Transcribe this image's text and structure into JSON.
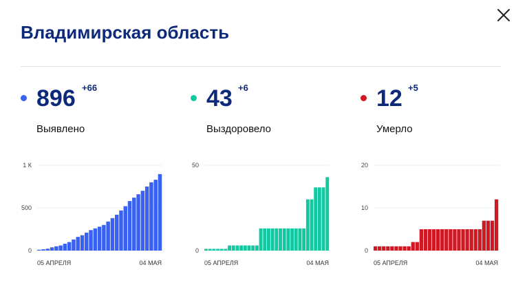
{
  "header": {
    "title": "Владимирская область"
  },
  "stats": [
    {
      "value": "896",
      "delta": "+66",
      "label": "Выявлено",
      "color": "#3a62f2"
    },
    {
      "value": "43",
      "delta": "+6",
      "label": "Выздоровело",
      "color": "#12c8a0"
    },
    {
      "value": "12",
      "delta": "+5",
      "label": "Умерло",
      "color": "#d01822"
    }
  ],
  "chart_data": [
    {
      "type": "bar",
      "color": "#3a62f2",
      "ylim": [
        0,
        1000
      ],
      "y_ticks": [
        {
          "value": 0,
          "label": "0"
        },
        {
          "value": 500,
          "label": "500"
        },
        {
          "value": 1000,
          "label": "1 К"
        }
      ],
      "x_labels": [
        "05 АПРЕЛЯ",
        "04 МАЯ"
      ],
      "values": [
        10,
        15,
        22,
        38,
        50,
        60,
        80,
        100,
        130,
        160,
        180,
        210,
        240,
        260,
        280,
        300,
        340,
        380,
        420,
        470,
        520,
        580,
        620,
        660,
        700,
        750,
        800,
        830,
        896
      ]
    },
    {
      "type": "bar",
      "color": "#12c8a0",
      "ylim": [
        0,
        50
      ],
      "y_ticks": [
        {
          "value": 0,
          "label": "0"
        },
        {
          "value": 50,
          "label": "50"
        }
      ],
      "x_labels": [
        "05 АПРЕЛЯ",
        "04 МАЯ"
      ],
      "values": [
        1,
        1,
        1,
        1,
        1,
        1,
        3,
        3,
        3,
        3,
        3,
        3,
        3,
        3,
        13,
        13,
        13,
        13,
        13,
        13,
        13,
        13,
        13,
        13,
        13,
        13,
        30,
        30,
        37,
        37,
        37,
        43
      ]
    },
    {
      "type": "bar",
      "color": "#d01822",
      "ylim": [
        0,
        20
      ],
      "y_ticks": [
        {
          "value": 0,
          "label": "0"
        },
        {
          "value": 10,
          "label": "10"
        },
        {
          "value": 20,
          "label": "20"
        }
      ],
      "x_labels": [
        "05 АПРЕЛЯ",
        "04 МАЯ"
      ],
      "values": [
        1,
        1,
        1,
        1,
        1,
        1,
        1,
        1,
        1,
        2,
        2,
        5,
        5,
        5,
        5,
        5,
        5,
        5,
        5,
        5,
        5,
        5,
        5,
        5,
        5,
        5,
        7,
        7,
        7,
        12
      ]
    }
  ]
}
